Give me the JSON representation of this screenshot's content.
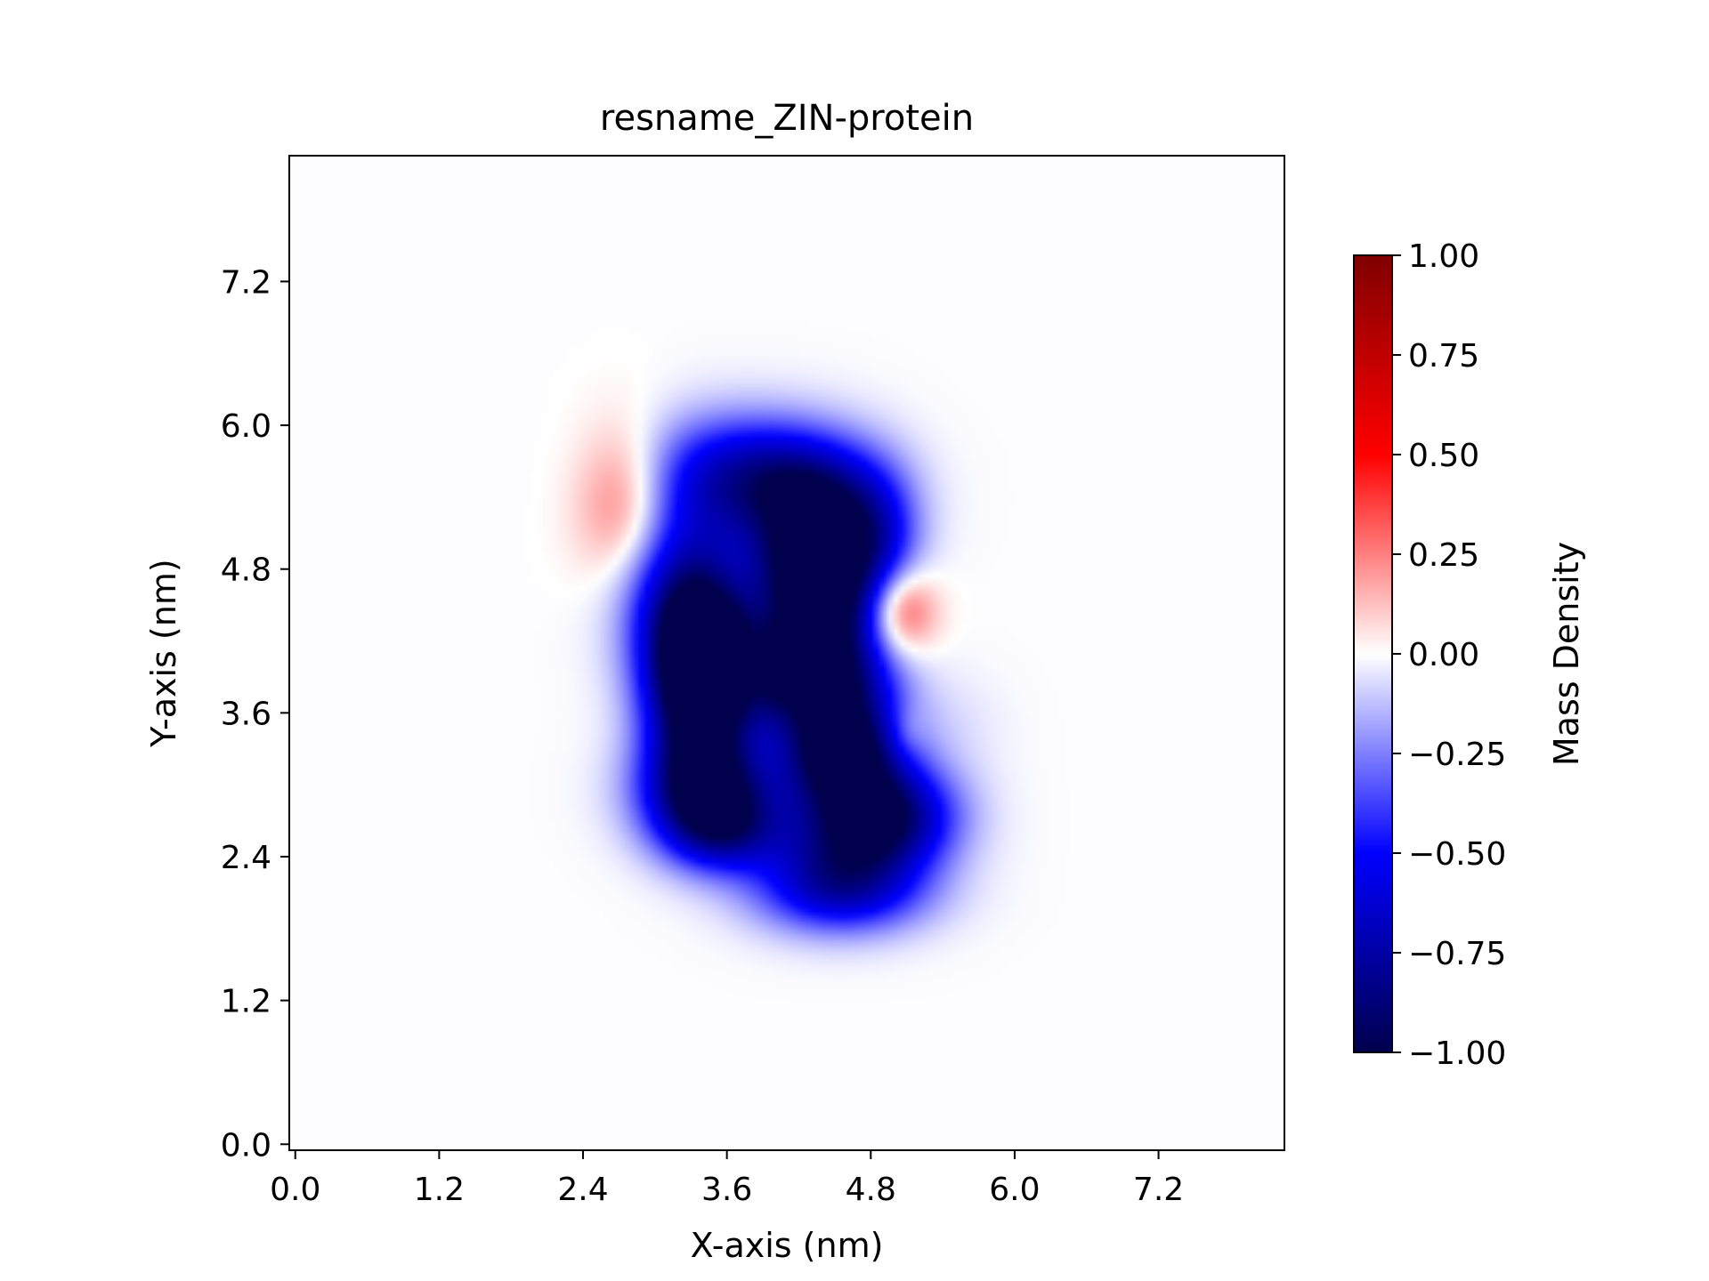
{
  "chart_data": {
    "type": "heatmap",
    "title": "resname_ZIN-protein",
    "xlabel": "X-axis (nm)",
    "ylabel": "Y-axis (nm)",
    "xlim": [
      -0.05,
      8.25
    ],
    "ylim": [
      -0.05,
      8.25
    ],
    "xticks": [
      "0.0",
      "1.2",
      "2.4",
      "3.6",
      "4.8",
      "6.0",
      "7.2"
    ],
    "yticks": [
      "0.0",
      "1.2",
      "2.4",
      "3.6",
      "4.8",
      "6.0",
      "7.2"
    ],
    "tick_values": [
      0.0,
      1.2,
      2.4,
      3.6,
      4.8,
      6.0,
      7.2
    ],
    "colorbar": {
      "label": "Mass Density",
      "range": [
        -1.0,
        1.0
      ],
      "ticks": [
        "1.00",
        "0.75",
        "0.50",
        "0.25",
        "0.00",
        "−0.25",
        "−0.50",
        "−0.75",
        "−1.00"
      ],
      "tick_values": [
        1.0,
        0.75,
        0.5,
        0.25,
        0.0,
        -0.25,
        -0.5,
        -0.75,
        -1.0
      ],
      "colormap": "seismic"
    },
    "grid": false,
    "density_features": [
      {
        "sign": "negative",
        "x": 3.7,
        "y": 5.6,
        "sx": 0.55,
        "sy": 0.35,
        "amp": -0.55
      },
      {
        "sign": "negative",
        "x": 4.3,
        "y": 5.4,
        "sx": 0.45,
        "sy": 0.35,
        "amp": -0.6
      },
      {
        "sign": "negative",
        "x": 3.25,
        "y": 4.6,
        "sx": 0.35,
        "sy": 0.55,
        "amp": -0.7
      },
      {
        "sign": "negative",
        "x": 3.4,
        "y": 4.1,
        "sx": 0.3,
        "sy": 0.4,
        "amp": -0.85
      },
      {
        "sign": "negative",
        "x": 3.35,
        "y": 3.5,
        "sx": 0.3,
        "sy": 0.45,
        "amp": -0.8
      },
      {
        "sign": "negative",
        "x": 3.45,
        "y": 2.95,
        "sx": 0.4,
        "sy": 0.3,
        "amp": -0.75
      },
      {
        "sign": "negative",
        "x": 3.55,
        "y": 2.6,
        "sx": 0.35,
        "sy": 0.25,
        "amp": -0.55
      },
      {
        "sign": "negative",
        "x": 4.15,
        "y": 4.8,
        "sx": 0.3,
        "sy": 0.35,
        "amp": -0.55
      },
      {
        "sign": "negative",
        "x": 4.45,
        "y": 4.6,
        "sx": 0.3,
        "sy": 0.5,
        "amp": -0.8
      },
      {
        "sign": "negative",
        "x": 4.55,
        "y": 3.75,
        "sx": 0.35,
        "sy": 0.4,
        "amp": -0.75
      },
      {
        "sign": "negative",
        "x": 4.0,
        "y": 3.95,
        "sx": 0.3,
        "sy": 0.35,
        "amp": -0.6
      },
      {
        "sign": "negative",
        "x": 4.55,
        "y": 3.2,
        "sx": 0.35,
        "sy": 0.3,
        "amp": -0.8
      },
      {
        "sign": "negative",
        "x": 4.95,
        "y": 2.75,
        "sx": 0.4,
        "sy": 0.3,
        "amp": -0.75
      },
      {
        "sign": "negative",
        "x": 4.55,
        "y": 2.5,
        "sx": 0.45,
        "sy": 0.3,
        "amp": -0.5
      },
      {
        "sign": "negative",
        "x": 4.55,
        "y": 2.1,
        "sx": 0.5,
        "sy": 0.25,
        "amp": -0.55
      },
      {
        "sign": "negative",
        "x": 4.85,
        "y": 5.0,
        "sx": 0.25,
        "sy": 0.4,
        "amp": -0.45
      },
      {
        "sign": "negative",
        "x": 5.5,
        "y": 3.5,
        "sx": 0.3,
        "sy": 0.3,
        "amp": -0.05
      },
      {
        "sign": "positive",
        "x": 2.75,
        "y": 5.35,
        "sx": 0.28,
        "sy": 0.45,
        "amp": 0.33
      },
      {
        "sign": "positive",
        "x": 5.05,
        "y": 4.45,
        "sx": 0.2,
        "sy": 0.25,
        "amp": 0.45
      },
      {
        "sign": "positive",
        "x": 3.8,
        "y": 4.0,
        "sx": 0.08,
        "sy": 0.22,
        "amp": 0.12
      },
      {
        "sign": "positive",
        "x": 5.1,
        "y": 3.45,
        "sx": 0.1,
        "sy": 0.15,
        "amp": 0.1
      }
    ]
  }
}
